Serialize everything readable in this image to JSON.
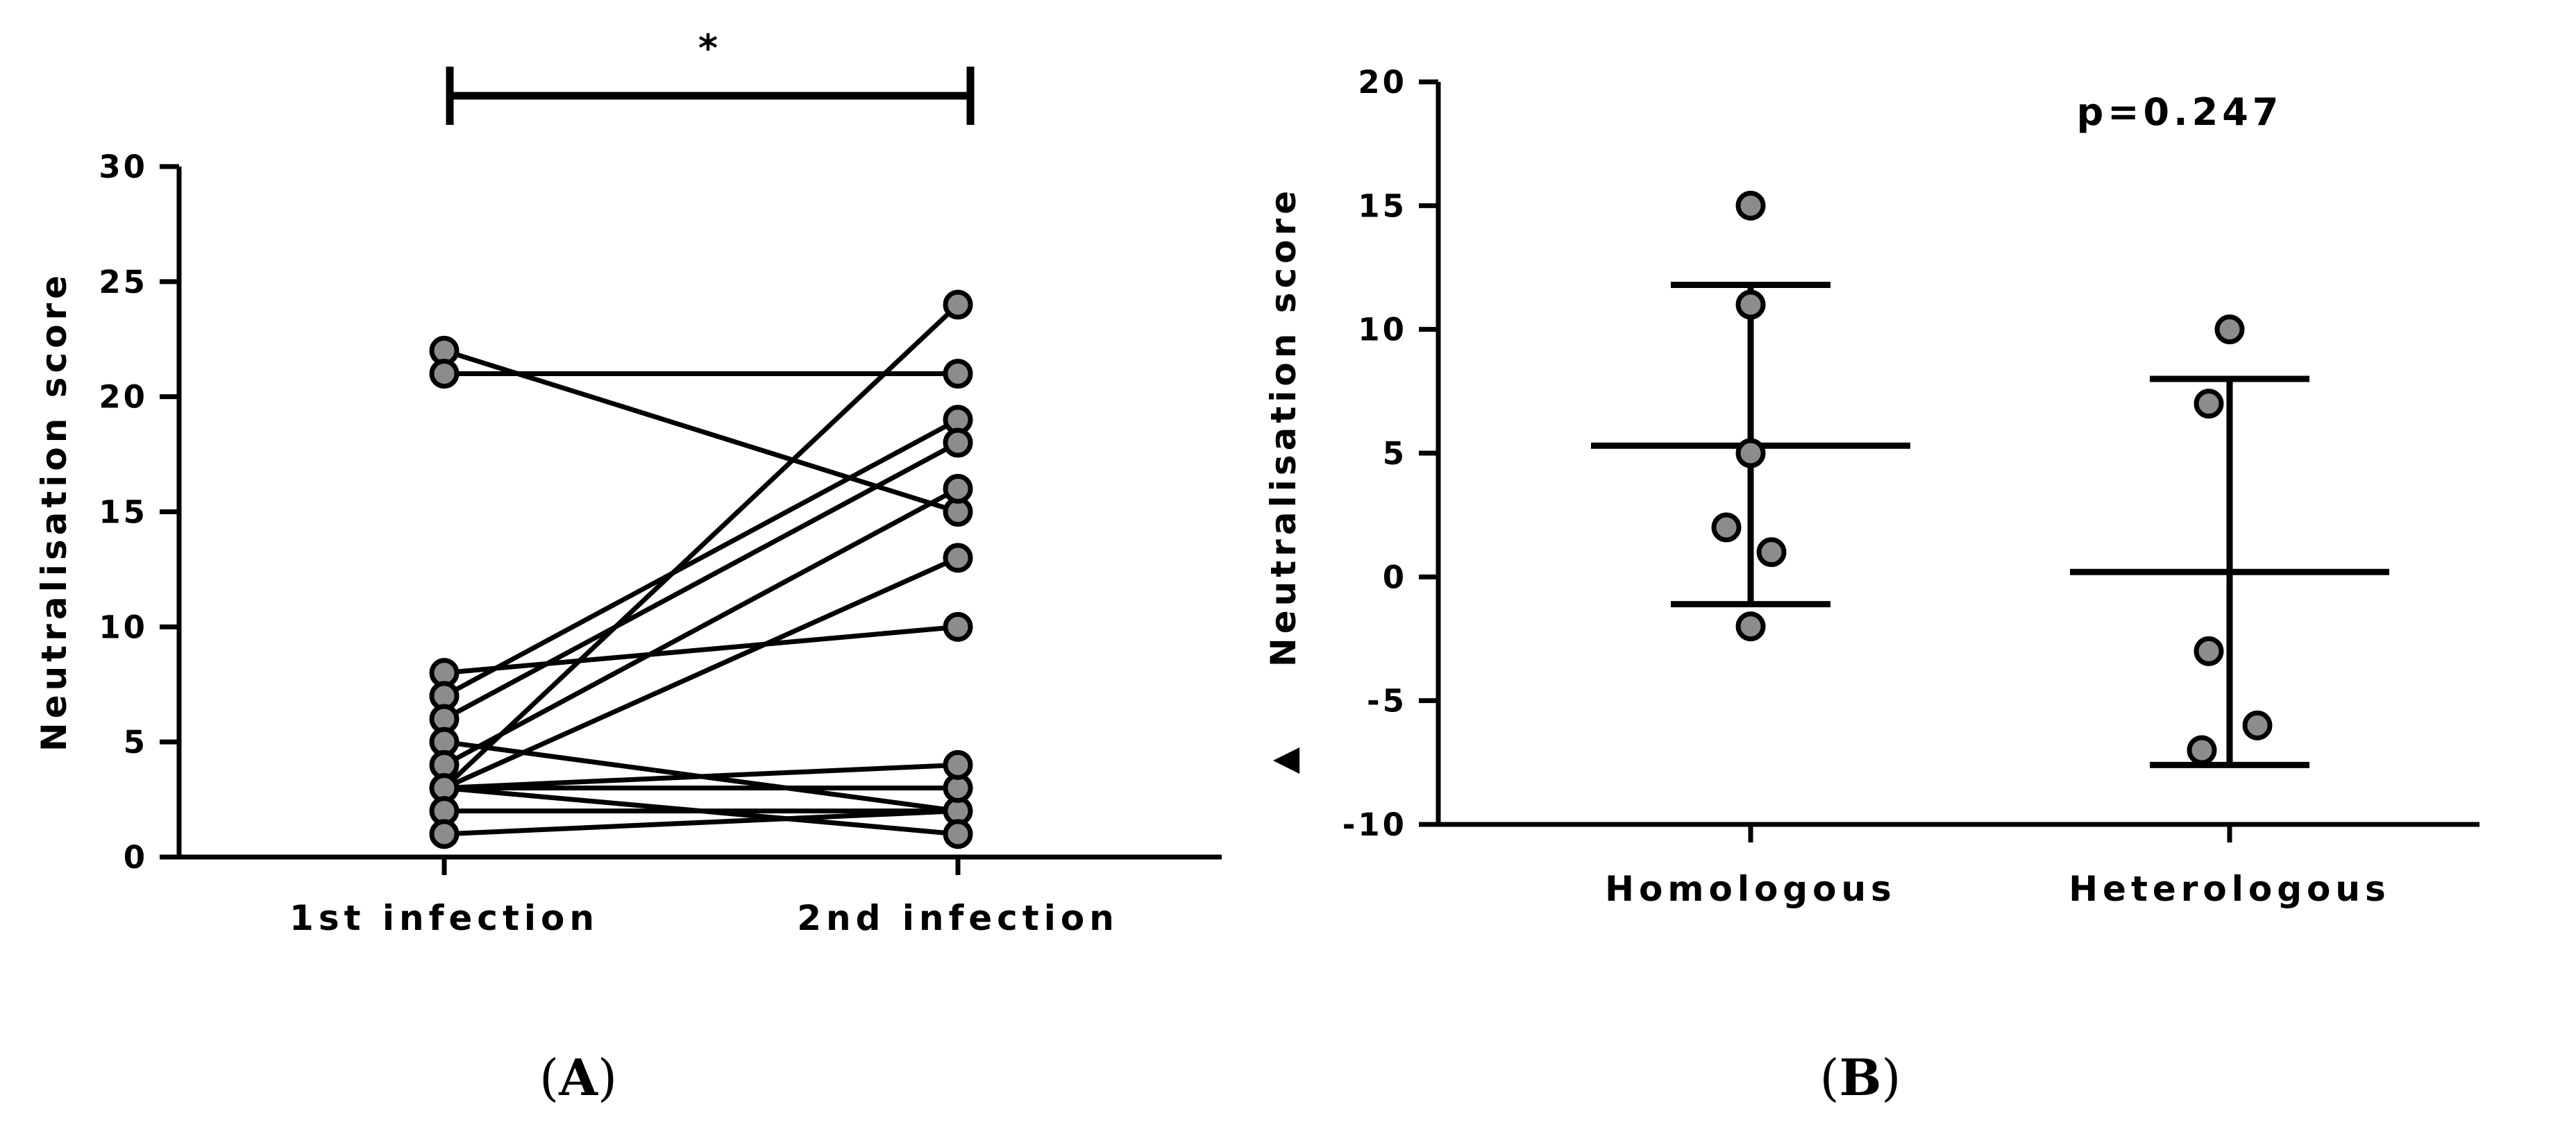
{
  "chart_data": [
    {
      "panel": "A",
      "type": "line",
      "ylabel": "Neutralisation score",
      "ylim": [
        0,
        30
      ],
      "yticks": [
        0,
        5,
        10,
        15,
        20,
        25,
        30
      ],
      "categories": [
        "1st infection",
        "2nd infection"
      ],
      "paired_values": [
        [
          22,
          15
        ],
        [
          21,
          21
        ],
        [
          8,
          10
        ],
        [
          7,
          19
        ],
        [
          6,
          18
        ],
        [
          5,
          2
        ],
        [
          4,
          16
        ],
        [
          3,
          13
        ],
        [
          3,
          3
        ],
        [
          3,
          4
        ],
        [
          3,
          24
        ],
        [
          2,
          2
        ],
        [
          1,
          2
        ],
        [
          3,
          1
        ]
      ],
      "significance": {
        "from": "1st infection",
        "to": "2nd infection",
        "label": "*"
      }
    },
    {
      "panel": "B",
      "type": "scatter",
      "ylabel": "Neutralisation score",
      "ylabel_prefix": "▲",
      "ylim": [
        -10,
        20
      ],
      "yticks": [
        -10,
        -5,
        0,
        5,
        10,
        15,
        20
      ],
      "categories": [
        "Homologous",
        "Heterologous"
      ],
      "groups": [
        {
          "name": "Homologous",
          "values": [
            15,
            11,
            5,
            2,
            1,
            -2
          ],
          "mean": 5.3,
          "sd_upper": 11.8,
          "sd_lower": -1.1
        },
        {
          "name": "Heterologous",
          "values": [
            10,
            7,
            -3,
            -6,
            -7
          ],
          "mean": 0.2,
          "sd_upper": 8.0,
          "sd_lower": -7.6
        }
      ],
      "annotation": "p=0.247"
    }
  ],
  "panel_labels": [
    "A",
    "B"
  ]
}
